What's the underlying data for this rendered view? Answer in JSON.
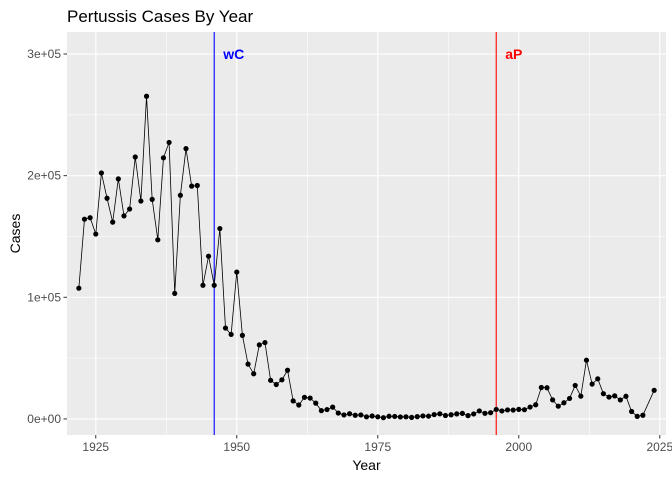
{
  "chart_data": {
    "type": "line",
    "title": "Pertussis Cases By Year",
    "xlabel": "Year",
    "ylabel": "Cases",
    "xlim": [
      1919.9,
      2026.1
    ],
    "ylim": [
      -13213,
      318100
    ],
    "x_ticks": [
      1925,
      1950,
      1975,
      2000,
      2025
    ],
    "y_ticks": [
      0,
      100000,
      200000,
      300000
    ],
    "y_tick_labels": [
      "0e+00",
      "1e+05",
      "2e+05",
      "3e+05"
    ],
    "grid": true,
    "legend": "none",
    "series": [
      {
        "points": [
          [
            1922,
            107473
          ],
          [
            1923,
            164191
          ],
          [
            1924,
            165418
          ],
          [
            1925,
            152003
          ],
          [
            1926,
            202210
          ],
          [
            1927,
            181411
          ],
          [
            1928,
            161799
          ],
          [
            1929,
            197371
          ],
          [
            1930,
            166914
          ],
          [
            1931,
            172559
          ],
          [
            1932,
            215343
          ],
          [
            1933,
            179135
          ],
          [
            1934,
            265269
          ],
          [
            1935,
            180518
          ],
          [
            1936,
            147237
          ],
          [
            1937,
            214652
          ],
          [
            1938,
            227319
          ],
          [
            1939,
            103188
          ],
          [
            1940,
            183866
          ],
          [
            1941,
            222202
          ],
          [
            1942,
            191383
          ],
          [
            1943,
            191890
          ],
          [
            1944,
            109873
          ],
          [
            1945,
            133792
          ],
          [
            1946,
            109860
          ],
          [
            1947,
            156517
          ],
          [
            1948,
            74715
          ],
          [
            1949,
            69479
          ],
          [
            1950,
            120718
          ],
          [
            1951,
            68687
          ],
          [
            1952,
            45030
          ],
          [
            1953,
            37129
          ],
          [
            1954,
            60886
          ],
          [
            1955,
            62786
          ],
          [
            1956,
            31732
          ],
          [
            1957,
            28295
          ],
          [
            1958,
            32148
          ],
          [
            1959,
            40005
          ],
          [
            1960,
            14809
          ],
          [
            1961,
            11468
          ],
          [
            1962,
            17749
          ],
          [
            1963,
            17135
          ],
          [
            1964,
            13005
          ],
          [
            1965,
            6799
          ],
          [
            1966,
            7717
          ],
          [
            1967,
            9718
          ],
          [
            1968,
            4810
          ],
          [
            1969,
            3285
          ],
          [
            1970,
            4249
          ],
          [
            1971,
            3036
          ],
          [
            1972,
            3287
          ],
          [
            1973,
            1759
          ],
          [
            1974,
            2402
          ],
          [
            1975,
            1738
          ],
          [
            1976,
            1010
          ],
          [
            1977,
            2177
          ],
          [
            1978,
            2063
          ],
          [
            1979,
            1623
          ],
          [
            1980,
            1730
          ],
          [
            1981,
            1248
          ],
          [
            1982,
            1895
          ],
          [
            1983,
            2463
          ],
          [
            1984,
            2276
          ],
          [
            1985,
            3589
          ],
          [
            1986,
            4195
          ],
          [
            1987,
            2823
          ],
          [
            1988,
            3450
          ],
          [
            1989,
            4157
          ],
          [
            1990,
            4570
          ],
          [
            1991,
            2719
          ],
          [
            1992,
            4083
          ],
          [
            1993,
            6586
          ],
          [
            1994,
            4617
          ],
          [
            1995,
            5137
          ],
          [
            1996,
            7796
          ],
          [
            1997,
            6564
          ],
          [
            1998,
            7405
          ],
          [
            1999,
            7298
          ],
          [
            2000,
            7867
          ],
          [
            2001,
            7580
          ],
          [
            2002,
            9771
          ],
          [
            2003,
            11647
          ],
          [
            2004,
            25827
          ],
          [
            2005,
            25616
          ],
          [
            2006,
            15632
          ],
          [
            2007,
            10454
          ],
          [
            2008,
            13278
          ],
          [
            2009,
            16858
          ],
          [
            2010,
            27550
          ],
          [
            2011,
            18719
          ],
          [
            2012,
            48277
          ],
          [
            2013,
            28639
          ],
          [
            2014,
            32971
          ],
          [
            2015,
            20762
          ],
          [
            2016,
            17972
          ],
          [
            2017,
            18975
          ],
          [
            2018,
            15609
          ],
          [
            2019,
            18617
          ],
          [
            2020,
            6124
          ],
          [
            2021,
            2116
          ],
          [
            2022,
            3044
          ],
          [
            2024,
            23544
          ]
        ]
      }
    ],
    "vlines": [
      {
        "x": 1946,
        "label": "wC",
        "color": "#0000ff"
      },
      {
        "x": 1996,
        "label": "aP",
        "color": "#ff0000"
      }
    ]
  }
}
